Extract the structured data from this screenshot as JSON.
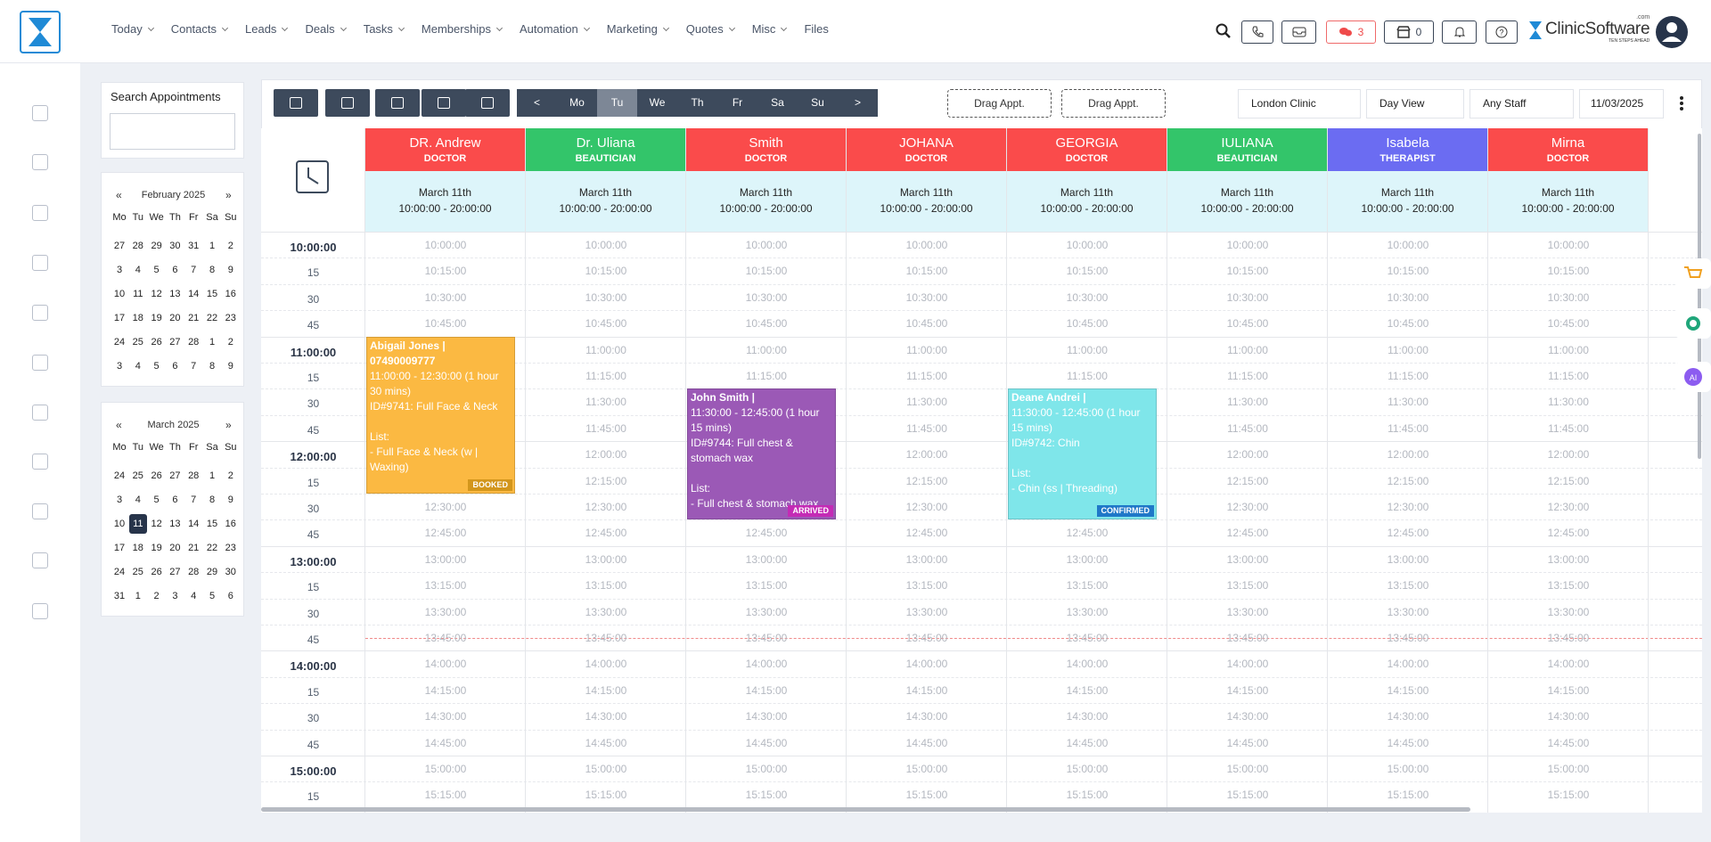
{
  "nav": {
    "items": [
      "Today",
      "Contacts",
      "Leads",
      "Deals",
      "Tasks",
      "Memberships",
      "Automation",
      "Marketing",
      "Quotes",
      "Misc",
      "Files"
    ],
    "chat_count": 3,
    "store_count": 0
  },
  "brand": {
    "name": "ClinicSoftware",
    "suffix": ".com",
    "tagline": "TEN STEPS AHEAD"
  },
  "sidebar": {
    "search_title": "Search Appointments",
    "calendars": [
      {
        "prev": "«",
        "title": "February 2025",
        "next": "»",
        "weekdays": [
          "Mo",
          "Tu",
          "We",
          "Th",
          "Fr",
          "Sa",
          "Su"
        ],
        "weeks": [
          [
            27,
            28,
            29,
            30,
            31,
            1,
            2
          ],
          [
            3,
            4,
            5,
            6,
            7,
            8,
            9
          ],
          [
            10,
            11,
            12,
            13,
            14,
            15,
            16
          ],
          [
            17,
            18,
            19,
            20,
            21,
            22,
            23
          ],
          [
            24,
            25,
            26,
            27,
            28,
            1,
            2
          ],
          [
            3,
            4,
            5,
            6,
            7,
            8,
            9
          ]
        ]
      },
      {
        "prev": "«",
        "title": "March 2025",
        "next": "»",
        "weekdays": [
          "Mo",
          "Tu",
          "We",
          "Th",
          "Fr",
          "Sa",
          "Su"
        ],
        "weeks": [
          [
            24,
            25,
            26,
            27,
            28,
            1,
            2
          ],
          [
            3,
            4,
            5,
            6,
            7,
            8,
            9
          ],
          [
            10,
            11,
            12,
            13,
            14,
            15,
            16
          ],
          [
            17,
            18,
            19,
            20,
            21,
            22,
            23
          ],
          [
            24,
            25,
            26,
            27,
            28,
            29,
            30
          ],
          [
            31,
            1,
            2,
            3,
            4,
            5,
            6
          ]
        ],
        "selected": 11
      }
    ]
  },
  "toolbar": {
    "days": [
      "<",
      "Mo",
      "Tu",
      "We",
      "Th",
      "Fr",
      "Sa",
      "Su",
      ">"
    ],
    "active_day": "Tu",
    "drag": [
      "Drag Appt.",
      "Drag Appt."
    ],
    "location": "London Clinic",
    "view": "Day View",
    "staff_filter": "Any Staff",
    "date": "11/03/2025"
  },
  "schedule": {
    "staff": [
      {
        "name": "DR. Andrew",
        "role": "DOCTOR",
        "color": "#fa4b4b",
        "date": "March 11th",
        "hours": "10:00:00 - 20:00:00",
        "appointments": [
          {
            "title": "Abigail Jones | 07490009777",
            "time": "11:00:00 - 12:30:00 (1 hour 30 mins)",
            "service": "ID#9741: Full Face & Neck",
            "list_label": "List:",
            "items": [
              "- Full Face & Neck (w | Waxing)"
            ],
            "status": "BOOKED",
            "color": "#fbb942",
            "status_color": "#d3961c"
          }
        ]
      },
      {
        "name": "Dr. Uliana",
        "role": "BEAUTICIAN",
        "color": "#33c56a",
        "date": "March 11th",
        "hours": "10:00:00 - 20:00:00",
        "appointments": []
      },
      {
        "name": "Smith",
        "role": "DOCTOR",
        "color": "#fa4b4b",
        "date": "March 11th",
        "hours": "10:00:00 - 20:00:00",
        "appointments": [
          {
            "title": "John Smith |",
            "time": "11:30:00 - 12:45:00 (1 hour 15 mins)",
            "service": "ID#9744: Full chest & stomach wax",
            "list_label": "List:",
            "items": [
              "- Full chest & stomach wax"
            ],
            "status": "ARRIVED",
            "color": "#9b59b6",
            "status_color": "#c42bb5"
          }
        ]
      },
      {
        "name": "JOHANA",
        "role": "DOCTOR",
        "color": "#fa4b4b",
        "date": "March 11th",
        "hours": "10:00:00 - 20:00:00",
        "appointments": []
      },
      {
        "name": "GEORGIA",
        "role": "DOCTOR",
        "color": "#fa4b4b",
        "date": "March 11th",
        "hours": "10:00:00 - 20:00:00",
        "appointments": [
          {
            "title": "Deane Andrei |",
            "time": "11:30:00 - 12:45:00 (1 hour 15 mins)",
            "service": "ID#9742: Chin",
            "list_label": "List:",
            "items": [
              "- Chin (ss | Threading)"
            ],
            "status": "CONFIRMED",
            "color": "#7fe6ea",
            "status_color": "#1f78c8"
          }
        ]
      },
      {
        "name": "IULIANA",
        "role": "BEAUTICIAN",
        "color": "#33c56a",
        "date": "March 11th",
        "hours": "10:00:00 - 20:00:00",
        "appointments": []
      },
      {
        "name": "Isabela",
        "role": "THERAPIST",
        "color": "#6b6cf2",
        "date": "March 11th",
        "hours": "10:00:00 - 20:00:00",
        "appointments": []
      },
      {
        "name": "Mirna",
        "role": "DOCTOR",
        "color": "#fa4b4b",
        "date": "March 11th",
        "hours": "10:00:00 - 20:00:00",
        "appointments": []
      }
    ],
    "slots": [
      {
        "label": "10:00:00",
        "time": "10:00:00"
      },
      {
        "label": "15",
        "time": "10:15:00"
      },
      {
        "label": "30",
        "time": "10:30:00"
      },
      {
        "label": "45",
        "time": "10:45:00"
      },
      {
        "label": "11:00:00",
        "time": "11:00:00"
      },
      {
        "label": "15",
        "time": "11:15:00"
      },
      {
        "label": "30",
        "time": "11:30:00"
      },
      {
        "label": "45",
        "time": "11:45:00"
      },
      {
        "label": "12:00:00",
        "time": "12:00:00"
      },
      {
        "label": "15",
        "time": "12:15:00"
      },
      {
        "label": "30",
        "time": "12:30:00"
      },
      {
        "label": "45",
        "time": "12:45:00"
      },
      {
        "label": "13:00:00",
        "time": "13:00:00"
      },
      {
        "label": "15",
        "time": "13:15:00"
      },
      {
        "label": "30",
        "time": "13:30:00"
      },
      {
        "label": "45",
        "time": "13:45:00"
      },
      {
        "label": "14:00:00",
        "time": "14:00:00"
      },
      {
        "label": "15",
        "time": "14:15:00"
      },
      {
        "label": "30",
        "time": "14:30:00"
      },
      {
        "label": "45",
        "time": "14:45:00"
      },
      {
        "label": "15:00:00",
        "time": "15:00:00"
      },
      {
        "label": "15",
        "time": "15:15:00"
      }
    ]
  }
}
